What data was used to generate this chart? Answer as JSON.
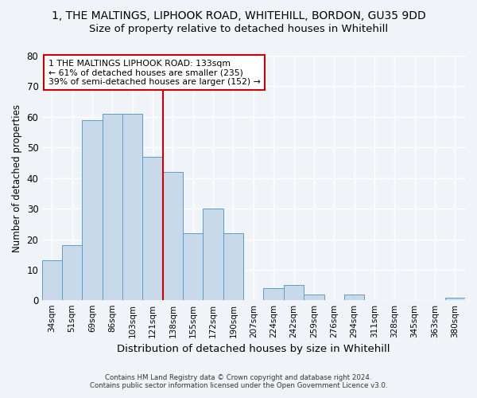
{
  "title": "1, THE MALTINGS, LIPHOOK ROAD, WHITEHILL, BORDON, GU35 9DD",
  "subtitle": "Size of property relative to detached houses in Whitehill",
  "xlabel": "Distribution of detached houses by size in Whitehill",
  "ylabel": "Number of detached properties",
  "bar_labels": [
    "34sqm",
    "51sqm",
    "69sqm",
    "86sqm",
    "103sqm",
    "121sqm",
    "138sqm",
    "155sqm",
    "172sqm",
    "190sqm",
    "207sqm",
    "224sqm",
    "242sqm",
    "259sqm",
    "276sqm",
    "294sqm",
    "311sqm",
    "328sqm",
    "345sqm",
    "363sqm",
    "380sqm"
  ],
  "bar_values": [
    13,
    18,
    59,
    61,
    61,
    47,
    42,
    22,
    30,
    22,
    0,
    4,
    5,
    2,
    0,
    2,
    0,
    0,
    0,
    0,
    1
  ],
  "bar_color": "#c8d9ea",
  "bar_edge_color": "#5b9dc9",
  "reference_line_color": "#cc0000",
  "annotation_line1": "1 THE MALTINGS LIPHOOK ROAD: 133sqm",
  "annotation_line2": "← 61% of detached houses are smaller (235)",
  "annotation_line3": "39% of semi-detached houses are larger (152) →",
  "annotation_box_color": "#ffffff",
  "annotation_box_edge": "#cc0000",
  "ylim": [
    0,
    80
  ],
  "yticks": [
    0,
    10,
    20,
    30,
    40,
    50,
    60,
    70,
    80
  ],
  "footer_line1": "Contains HM Land Registry data © Crown copyright and database right 2024.",
  "footer_line2": "Contains public sector information licensed under the Open Government Licence v3.0.",
  "bg_color": "#f0f4f8",
  "grid_color": "#ffffff",
  "title_fontsize": 10,
  "subtitle_fontsize": 9.5,
  "title_fontweight": "normal"
}
